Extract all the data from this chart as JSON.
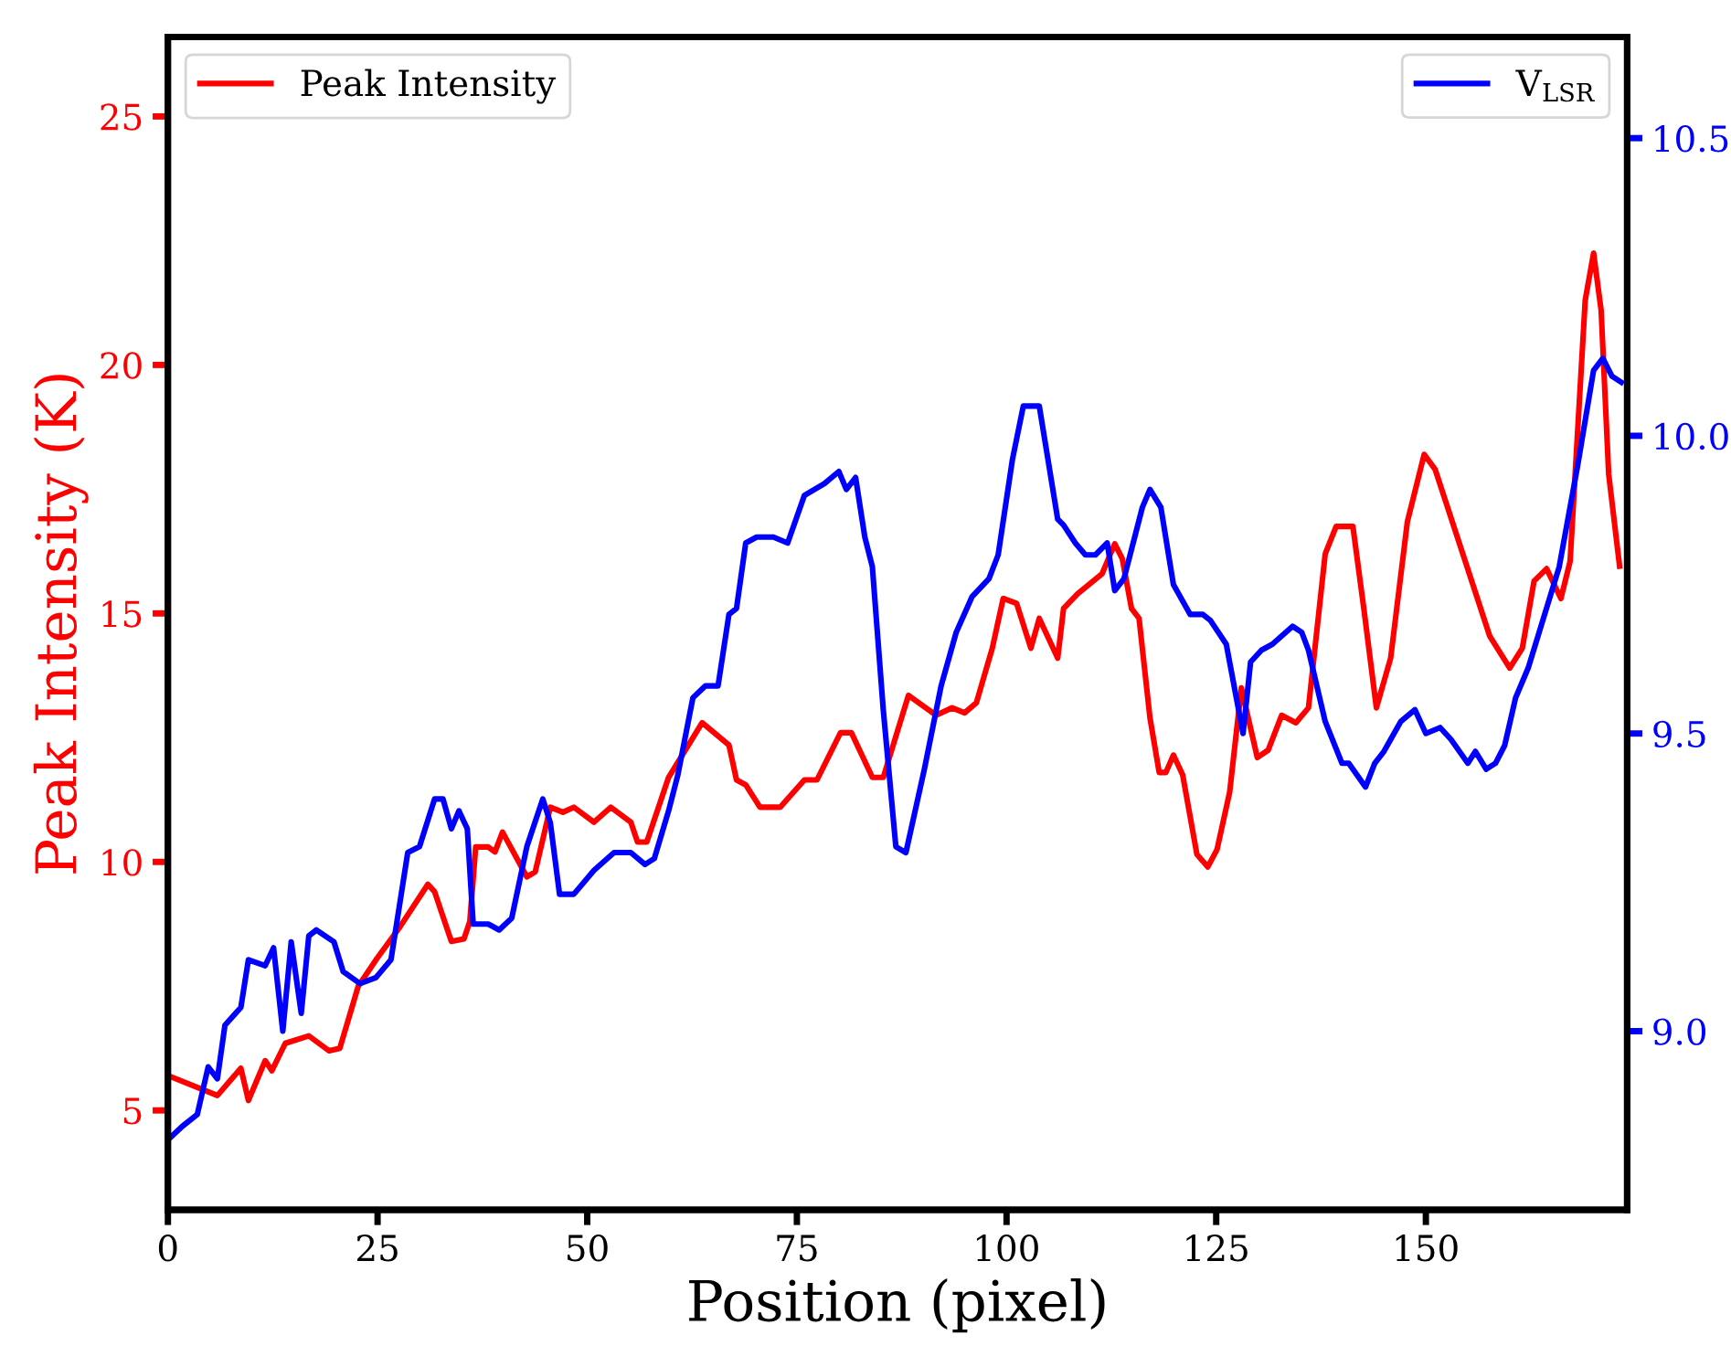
{
  "chart_data": {
    "type": "line",
    "xlabel": "Position (pixel)",
    "ylabel": "Peak Intensity (K)",
    "xlim": [
      0,
      174
    ],
    "xticks": [
      0,
      25,
      50,
      75,
      100,
      125,
      150
    ],
    "ylim": [
      3,
      26.6
    ],
    "yticks": [
      5,
      10,
      15,
      20,
      25
    ],
    "y2lim": [
      8.7,
      10.67
    ],
    "y2ticks": [
      {
        "value": 9.0,
        "label": "9.0"
      },
      {
        "value": 9.5,
        "label": "9.5"
      },
      {
        "value": 10.0,
        "label": "10.0"
      },
      {
        "value": 10.5,
        "label": "10.5"
      }
    ],
    "grid": false,
    "legend": "top",
    "marker": "none",
    "line_style": "solid",
    "series": [
      {
        "name": "Peak Intensity",
        "color": "#ff0000",
        "x": [
          0,
          5.9,
          8.7,
          9.6,
          11.6,
          12.4,
          14,
          16.8,
          19.2,
          20.5,
          22.7,
          24.9,
          27.7,
          31,
          31.8,
          33.8,
          35.3,
          36,
          36.7,
          38.2,
          39,
          39.9,
          42.8,
          43.8,
          45.6,
          47.1,
          48.4,
          50.8,
          52.8,
          55.2,
          56,
          57.1,
          59.7,
          63.7,
          66.9,
          67.8,
          68.9,
          70.6,
          73,
          75.9,
          77.4,
          80.2,
          81.5,
          84,
          85.3,
          88.3,
          91.6,
          93.5,
          95,
          96.4,
          98.3,
          99.6,
          101.2,
          102.9,
          103.9,
          106.1,
          106.8,
          108.5,
          111.4,
          112.9,
          113.8,
          114.9,
          115.8,
          117.1,
          118.2,
          119,
          119.9,
          121,
          122.7,
          124,
          125.1,
          126.6,
          128,
          129.9,
          131.2,
          132.8,
          134.5,
          136,
          138,
          139.3,
          141.3,
          142.6,
          144.1,
          145.8,
          147.8,
          149.8,
          151.1,
          154.4,
          157.6,
          160,
          161.5,
          162.9,
          164.4,
          166.1,
          167.2,
          169,
          170,
          170.9,
          171.8,
          173.1
        ],
        "values": [
          5.7,
          5.3,
          5.85,
          5.2,
          6.0,
          5.8,
          6.35,
          6.5,
          6.2,
          6.25,
          7.5,
          8.05,
          8.7,
          9.55,
          9.4,
          8.4,
          8.45,
          8.8,
          10.3,
          10.3,
          10.2,
          10.6,
          9.7,
          9.8,
          11.1,
          11.0,
          11.1,
          10.8,
          11.1,
          10.8,
          10.4,
          10.4,
          11.7,
          12.8,
          12.35,
          11.65,
          11.55,
          11.1,
          11.1,
          11.65,
          11.65,
          12.6,
          12.6,
          11.7,
          11.7,
          13.35,
          12.95,
          13.1,
          13.0,
          13.2,
          14.3,
          15.3,
          15.2,
          14.3,
          14.9,
          14.1,
          15.1,
          15.4,
          15.8,
          16.4,
          16.1,
          15.1,
          14.9,
          12.9,
          11.8,
          11.8,
          12.15,
          11.75,
          10.15,
          9.9,
          10.25,
          11.4,
          13.5,
          12.1,
          12.25,
          12.95,
          12.8,
          13.1,
          16.2,
          16.75,
          16.75,
          15.1,
          13.1,
          14.1,
          16.85,
          18.2,
          17.9,
          16.2,
          14.55,
          13.9,
          14.3,
          15.65,
          15.9,
          15.3,
          16.05,
          21.3,
          22.25,
          21.1,
          17.8,
          15.95
        ]
      },
      {
        "name": "V$_{LSR}$",
        "color": "#0000ff",
        "axis": "y2",
        "x": [
          0.2,
          1.7,
          3.5,
          4.8,
          5.9,
          6.8,
          8.7,
          9.6,
          11.6,
          12.6,
          13.7,
          14.7,
          15.9,
          16.8,
          17.7,
          19.8,
          20.9,
          22.9,
          24.8,
          26.6,
          28.6,
          30,
          31.8,
          32.8,
          33.8,
          34.7,
          35.7,
          36.4,
          38.2,
          39.5,
          41,
          42.8,
          44.7,
          45.6,
          46.7,
          48.4,
          50.8,
          53.2,
          55.2,
          56.9,
          58,
          59.7,
          60.8,
          62.6,
          64.1,
          65.6,
          66.9,
          67.8,
          68.9,
          70.2,
          72.2,
          73.9,
          75.9,
          78.3,
          80,
          80.9,
          82,
          83.1,
          84,
          85.3,
          86.8,
          88,
          90.2,
          92.2,
          94,
          95.9,
          97.9,
          99,
          100.7,
          102,
          103,
          103.9,
          106.1,
          106.8,
          108.2,
          109.4,
          110.6,
          112,
          112.9,
          114,
          116.2,
          117.1,
          118.4,
          119.9,
          121.9,
          123.4,
          124.3,
          126.2,
          128.2,
          129.1,
          130.4,
          131.7,
          134.1,
          135.2,
          136,
          138,
          140,
          140.8,
          142.8,
          143.9,
          145,
          147,
          148.7,
          150,
          151.7,
          153,
          155,
          155.9,
          157.2,
          158.3,
          159.4,
          160.7,
          162.2,
          165.9,
          168.1,
          170,
          171.1,
          172.2,
          173.3
        ],
        "values": [
          8.82,
          8.84,
          8.86,
          8.94,
          8.92,
          9.01,
          9.04,
          9.12,
          9.11,
          9.14,
          9.0,
          9.15,
          9.03,
          9.16,
          9.17,
          9.15,
          9.1,
          9.08,
          9.09,
          9.12,
          9.3,
          9.31,
          9.39,
          9.39,
          9.34,
          9.37,
          9.34,
          9.18,
          9.18,
          9.17,
          9.19,
          9.31,
          9.39,
          9.35,
          9.23,
          9.23,
          9.27,
          9.3,
          9.3,
          9.28,
          9.29,
          9.37,
          9.43,
          9.56,
          9.58,
          9.58,
          9.7,
          9.71,
          9.82,
          9.83,
          9.83,
          9.82,
          9.9,
          9.92,
          9.94,
          9.91,
          9.93,
          9.83,
          9.78,
          9.54,
          9.31,
          9.3,
          9.44,
          9.58,
          9.67,
          9.73,
          9.76,
          9.8,
          9.96,
          10.05,
          10.05,
          10.05,
          9.86,
          9.85,
          9.82,
          9.8,
          9.8,
          9.82,
          9.74,
          9.76,
          9.88,
          9.91,
          9.88,
          9.75,
          9.7,
          9.7,
          9.69,
          9.65,
          9.5,
          9.62,
          9.64,
          9.65,
          9.68,
          9.67,
          9.64,
          9.52,
          9.45,
          9.45,
          9.41,
          9.45,
          9.47,
          9.52,
          9.54,
          9.5,
          9.51,
          9.49,
          9.45,
          9.47,
          9.44,
          9.45,
          9.48,
          9.56,
          9.61,
          9.78,
          9.95,
          10.11,
          10.13,
          10.1,
          10.09
        ]
      }
    ]
  }
}
